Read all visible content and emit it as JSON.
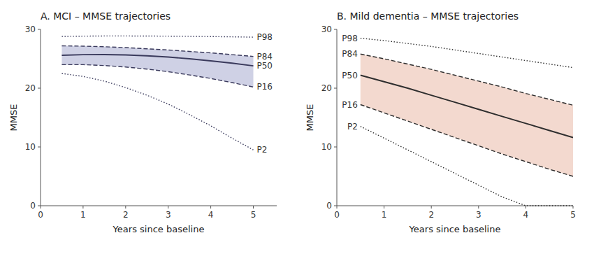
{
  "chart_data": [
    {
      "type": "line",
      "title": "A. MCI – MMSE trajectories",
      "x_label": "Years since baseline",
      "y_label": "MMSE",
      "x": [
        0.5,
        1.0,
        1.5,
        2.0,
        2.5,
        3.0,
        3.5,
        4.0,
        4.5,
        5.0
      ],
      "xlim": [
        0,
        5.55
      ],
      "xticks": [
        0,
        1,
        2,
        3,
        4,
        5
      ],
      "ylim": [
        0,
        30
      ],
      "yticks": [
        0,
        10,
        20,
        30
      ],
      "grid": false,
      "legend": "right",
      "color": "#3a3a5c",
      "band": {
        "lower": "P16",
        "upper": "P84",
        "color": "#9fa3cc"
      },
      "series": [
        {
          "name": "P98",
          "line_style": "dotted",
          "values": [
            28.8,
            28.85,
            28.88,
            28.88,
            28.87,
            28.85,
            28.82,
            28.78,
            28.73,
            28.68
          ]
        },
        {
          "name": "P84",
          "line_style": "dashed",
          "values": [
            27.2,
            27.15,
            27.05,
            26.9,
            26.7,
            26.5,
            26.25,
            26.0,
            25.7,
            25.4
          ]
        },
        {
          "name": "P50",
          "line_style": "solid",
          "values": [
            25.6,
            25.7,
            25.72,
            25.65,
            25.5,
            25.3,
            25.0,
            24.65,
            24.25,
            23.8
          ]
        },
        {
          "name": "P16",
          "line_style": "dashed",
          "values": [
            24.0,
            24.0,
            23.85,
            23.6,
            23.25,
            22.8,
            22.25,
            21.65,
            20.95,
            20.2
          ]
        },
        {
          "name": "P2",
          "line_style": "dotted",
          "values": [
            22.5,
            22.0,
            21.2,
            20.1,
            18.8,
            17.3,
            15.5,
            13.6,
            11.5,
            9.5
          ]
        }
      ]
    },
    {
      "type": "line",
      "title": "B. Mild dementia – MMSE trajectories",
      "x_label": "Years since baseline",
      "y_label": "MMSE",
      "x": [
        0.5,
        1.0,
        1.5,
        2.0,
        2.5,
        3.0,
        3.5,
        4.0,
        4.5,
        5.0
      ],
      "xlim": [
        0,
        5
      ],
      "xticks": [
        0,
        1,
        2,
        3,
        4,
        5
      ],
      "ylim": [
        0,
        30
      ],
      "yticks": [
        0,
        10,
        20,
        30
      ],
      "grid": false,
      "legend": "left",
      "color": "#2e2e2e",
      "band": {
        "lower": "P16",
        "upper": "P84",
        "color": "#e8b4a0"
      },
      "series": [
        {
          "name": "P98",
          "line_style": "dotted",
          "values": [
            28.5,
            28.1,
            27.6,
            27.1,
            26.5,
            25.9,
            25.3,
            24.7,
            24.1,
            23.5
          ]
        },
        {
          "name": "P84",
          "line_style": "dashed",
          "values": [
            25.8,
            25.0,
            24.1,
            23.2,
            22.2,
            21.2,
            20.2,
            19.1,
            18.1,
            17.1
          ]
        },
        {
          "name": "P50",
          "line_style": "solid",
          "values": [
            22.2,
            21.1,
            20.0,
            18.8,
            17.6,
            16.4,
            15.2,
            14.0,
            12.8,
            11.6
          ]
        },
        {
          "name": "P16",
          "line_style": "dashed",
          "values": [
            17.2,
            15.8,
            14.4,
            13.0,
            11.6,
            10.2,
            8.8,
            7.5,
            6.2,
            5.0
          ]
        },
        {
          "name": "P2",
          "line_style": "dotted",
          "values": [
            13.5,
            11.5,
            9.5,
            7.5,
            5.5,
            3.5,
            1.5,
            0.0,
            0.0,
            0.0
          ]
        }
      ]
    }
  ]
}
